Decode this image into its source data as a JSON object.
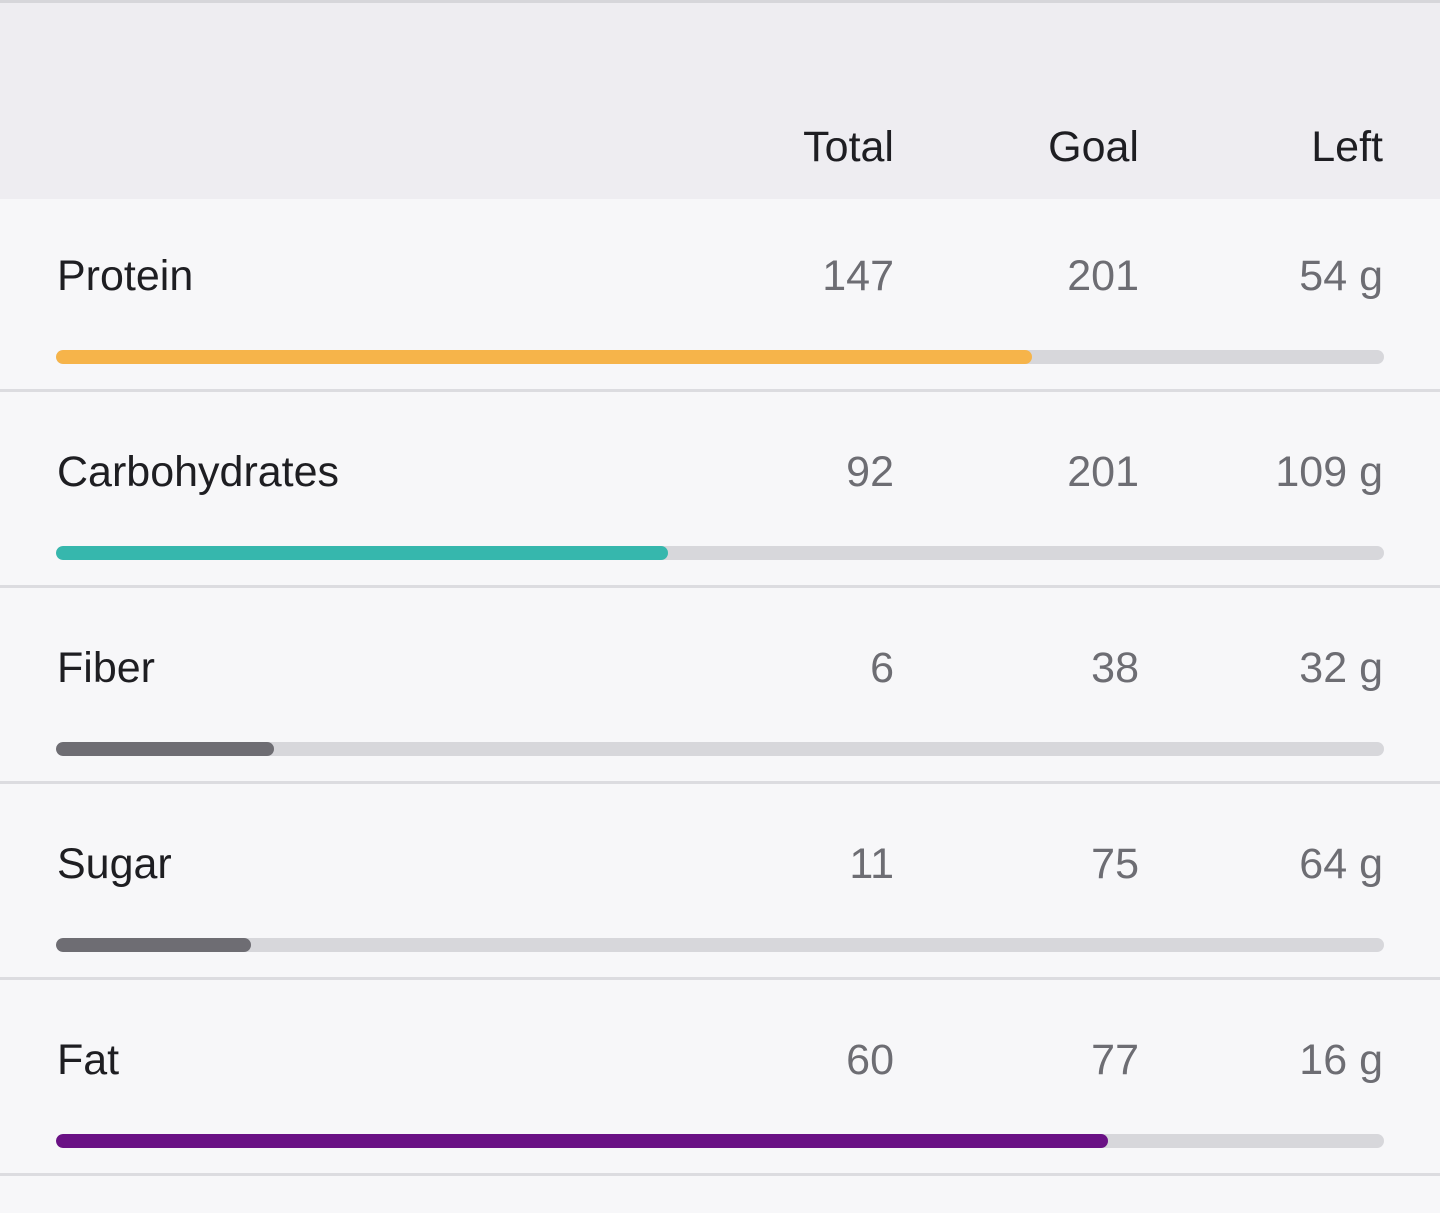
{
  "header": {
    "columns": [
      "Total",
      "Goal",
      "Left"
    ]
  },
  "rows": [
    {
      "label": "Protein",
      "total": "147",
      "goal": "201",
      "left": "54 g",
      "progress": 0.735,
      "color": "#f6b44a"
    },
    {
      "label": "Carbohydrates",
      "total": "92",
      "goal": "201",
      "left": "109 g",
      "progress": 0.461,
      "color": "#36b7ad"
    },
    {
      "label": "Fiber",
      "total": "6",
      "goal": "38",
      "left": "32 g",
      "progress": 0.164,
      "color": "#6e6d73"
    },
    {
      "label": "Sugar",
      "total": "11",
      "goal": "75",
      "left": "64 g",
      "progress": 0.147,
      "color": "#6e6d73"
    },
    {
      "label": "Fat",
      "total": "60",
      "goal": "77",
      "left": "16 g",
      "progress": 0.792,
      "color": "#6a1185"
    }
  ]
}
